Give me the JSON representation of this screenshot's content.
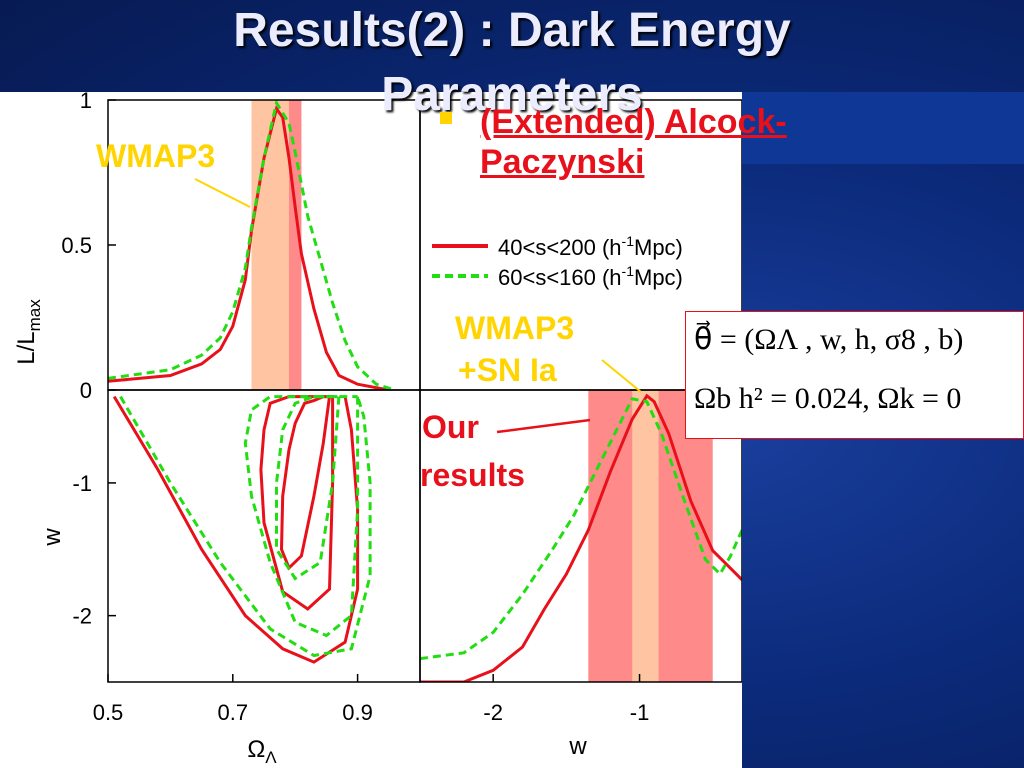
{
  "slide": {
    "title_line1": "Results(2) : Dark Energy",
    "title_line2": "Parameters",
    "bullet_line1": "(Extended) Alcock-",
    "bullet_line2": "Paczynski"
  },
  "annotations": {
    "wmap3": "WMAP3",
    "wmap3_sn_line1": "WMAP3",
    "wmap3_sn_line2": "+SN Ia",
    "our_results_line1": "Our",
    "our_results_line2": "results"
  },
  "formula": {
    "line1": "θ⃗ = (ΩΛ , w, h, σ8 , b)",
    "line2": "Ωb h² = 0.024, Ωk = 0"
  },
  "colors": {
    "series1": "#e8101a",
    "series2": "#22dd11",
    "band_wmap3": "#ff8a8a",
    "band_inner": "#ffc4a2",
    "annotation_yellow": "#ffd400"
  },
  "chart_data": [
    {
      "type": "line",
      "panel": "top-left",
      "xlim": [
        0.5,
        1.0
      ],
      "ylim": [
        0,
        1
      ],
      "ylabel": "L/L",
      "ylabel_sub": "max",
      "yticks": [
        "0",
        "0.5",
        "1"
      ],
      "bands": [
        {
          "from": 0.73,
          "to": 0.81
        },
        {
          "from": 0.73,
          "to": 0.79
        }
      ],
      "series": [
        {
          "name": "40<s<200 (h-1Mpc)",
          "x": [
            0.5,
            0.6,
            0.65,
            0.68,
            0.7,
            0.72,
            0.73,
            0.75,
            0.77,
            0.78,
            0.79,
            0.8,
            0.81,
            0.83,
            0.85,
            0.87,
            0.9,
            0.95
          ],
          "y": [
            0.03,
            0.05,
            0.09,
            0.14,
            0.22,
            0.38,
            0.55,
            0.8,
            0.97,
            0.94,
            0.8,
            0.63,
            0.47,
            0.28,
            0.13,
            0.05,
            0.02,
            0.0
          ]
        },
        {
          "name": "60<s<160 (h-1Mpc)",
          "x": [
            0.5,
            0.6,
            0.65,
            0.68,
            0.7,
            0.72,
            0.73,
            0.75,
            0.77,
            0.79,
            0.8,
            0.82,
            0.84,
            0.86,
            0.88,
            0.9,
            0.93,
            0.96
          ],
          "y": [
            0.04,
            0.07,
            0.12,
            0.18,
            0.27,
            0.42,
            0.56,
            0.8,
            0.99,
            0.92,
            0.82,
            0.6,
            0.45,
            0.3,
            0.17,
            0.08,
            0.02,
            0.0
          ]
        }
      ]
    },
    {
      "type": "line",
      "panel": "top-right-legend",
      "legend": [
        "40<s<200 (h",
        "-1",
        "Mpc)",
        "60<s<160 (h",
        "-1",
        "Mpc)"
      ]
    },
    {
      "type": "line",
      "panel": "bottom-left",
      "xlabel": "Ω",
      "xlabel_sub": "Λ",
      "ylabel": "w",
      "xlim": [
        0.5,
        1.0
      ],
      "ylim": [
        -2.5,
        -0.3
      ],
      "xticks": [
        "0.5",
        "0.7",
        "0.9"
      ],
      "yticks": [
        "-1",
        "-2"
      ],
      "series": [
        {
          "name": "40<s<200 (h-1Mpc) 1σ",
          "x": [
            0.855,
            0.845,
            0.83,
            0.81,
            0.79,
            0.778,
            0.78,
            0.79,
            0.8,
            0.815,
            0.83,
            0.845,
            0.855
          ],
          "y": [
            -0.35,
            -0.7,
            -1.1,
            -1.55,
            -1.64,
            -1.5,
            -1.1,
            -0.75,
            -0.55,
            -0.4,
            -0.38,
            -0.35,
            -0.35
          ]
        },
        {
          "name": "40<s<200 (h-1Mpc) 2σ",
          "x": [
            0.86,
            0.86,
            0.855,
            0.82,
            0.78,
            0.75,
            0.745,
            0.75,
            0.76,
            0.79,
            0.82,
            0.86
          ],
          "y": [
            -0.35,
            -1.0,
            -1.8,
            -1.95,
            -1.82,
            -1.3,
            -0.9,
            -0.6,
            -0.4,
            -0.35,
            -0.35,
            -0.35
          ]
        },
        {
          "name": "40<s<200 (h-1Mpc) 3σ",
          "x": [
            0.51,
            0.58,
            0.65,
            0.72,
            0.78,
            0.83,
            0.88,
            0.9,
            0.9,
            0.89,
            0.88
          ],
          "y": [
            -0.35,
            -0.9,
            -1.5,
            -2.0,
            -2.25,
            -2.35,
            -2.2,
            -1.8,
            -1.2,
            -0.6,
            -0.35
          ]
        },
        {
          "name": "60<s<160 (h-1Mpc) 1σ",
          "x": [
            0.87,
            0.86,
            0.84,
            0.8,
            0.77,
            0.77,
            0.78,
            0.8,
            0.83,
            0.87
          ],
          "y": [
            -0.35,
            -1.0,
            -1.6,
            -1.72,
            -1.5,
            -1.0,
            -0.6,
            -0.4,
            -0.35,
            -0.35
          ]
        },
        {
          "name": "60<s<160 (h-1Mpc) 2σ",
          "x": [
            0.9,
            0.9,
            0.89,
            0.85,
            0.8,
            0.76,
            0.73,
            0.72,
            0.73,
            0.76,
            0.8,
            0.9
          ],
          "y": [
            -0.35,
            -1.2,
            -2.0,
            -2.15,
            -2.05,
            -1.6,
            -1.1,
            -0.7,
            -0.45,
            -0.35,
            -0.35,
            -0.35
          ]
        },
        {
          "name": "60<s<160 (h-1Mpc) 3σ",
          "x": [
            0.52,
            0.6,
            0.68,
            0.76,
            0.83,
            0.89,
            0.92,
            0.92,
            0.91,
            0.9
          ],
          "y": [
            -0.35,
            -1.0,
            -1.6,
            -2.1,
            -2.3,
            -2.25,
            -1.7,
            -1.0,
            -0.5,
            -0.35
          ]
        }
      ]
    },
    {
      "type": "line",
      "panel": "bottom-right",
      "xlabel": "w",
      "xlim": [
        -2.5,
        -0.3
      ],
      "ylim": [
        0,
        1
      ],
      "xticks": [
        "-2",
        "-1"
      ],
      "bands": [
        {
          "from": -1.35,
          "to": -0.5
        },
        {
          "from": -1.05,
          "to": -0.87
        }
      ],
      "series": [
        {
          "name": "40<s<200 (h-1Mpc)",
          "x": [
            -2.5,
            -2.2,
            -2.0,
            -1.8,
            -1.65,
            -1.5,
            -1.35,
            -1.2,
            -1.05,
            -0.95,
            -0.9,
            -0.8,
            -0.65,
            -0.5,
            -0.4,
            -0.3
          ],
          "y": [
            0.0,
            0.0,
            0.04,
            0.12,
            0.25,
            0.37,
            0.52,
            0.72,
            0.9,
            0.98,
            0.96,
            0.85,
            0.62,
            0.45,
            0.4,
            0.35
          ]
        },
        {
          "name": "60<s<160 (h-1Mpc)",
          "x": [
            -2.5,
            -2.2,
            -2.0,
            -1.8,
            -1.6,
            -1.45,
            -1.3,
            -1.15,
            -1.05,
            -0.95,
            -0.85,
            -0.7,
            -0.55,
            -0.45,
            -0.38,
            -0.3
          ],
          "y": [
            0.08,
            0.1,
            0.17,
            0.3,
            0.45,
            0.57,
            0.72,
            0.87,
            0.97,
            0.96,
            0.85,
            0.63,
            0.42,
            0.37,
            0.43,
            0.52
          ]
        }
      ]
    }
  ]
}
